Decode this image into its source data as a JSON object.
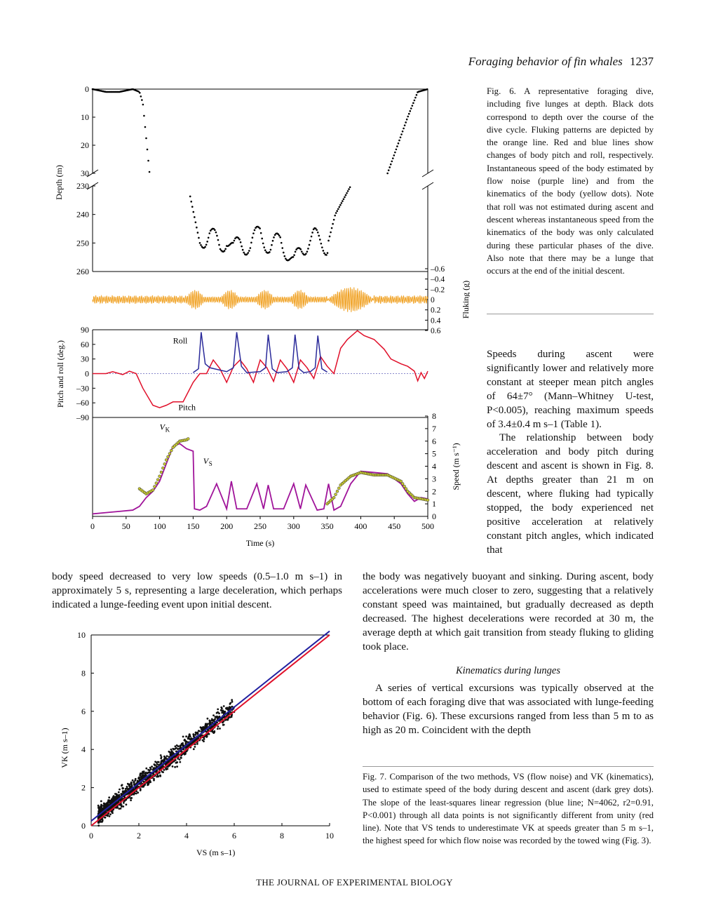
{
  "header": {
    "title": "Foraging behavior of fin whales",
    "page_number": "1237"
  },
  "fig6": {
    "caption": "Fig. 6. A representative foraging dive, including five lunges at depth. Black dots correspond to depth over the course of the dive cycle. Fluking patterns are depicted by the orange line. Red and blue lines show changes of body pitch and roll, respectively. Instantaneous speed of the body estimated by flow noise (purple line) and from the kinematics of the body (yellow dots). Note that roll was not estimated during ascent and descent whereas instantaneous speed from the kinematics of the body was only calculated during these particular phases of the dive. Also note that there may be a lunge that occurs at the end of the initial descent.",
    "depth_axis_label": "Depth (m)",
    "depth_ticks_top": [
      "0",
      "10",
      "20",
      "30"
    ],
    "depth_ticks_bottom": [
      "230",
      "240",
      "250",
      "260"
    ],
    "fluking_axis_label": "Fluking (g)",
    "fluking_ticks": [
      "–0.6",
      "–0.4",
      "–0.2",
      "0",
      "0.2",
      "0.4",
      "0.6"
    ],
    "pitch_axis_label": "Pitch and roll (deg.)",
    "pitch_ticks": [
      "90",
      "60",
      "30",
      "0",
      "–30",
      "–60",
      "–90"
    ],
    "roll_label": "Roll",
    "pitch_label": "Pitch",
    "speed_axis_label": "Speed (m s⁻¹)",
    "speed_ticks": [
      "8",
      "7",
      "6",
      "5",
      "4",
      "3",
      "2",
      "1",
      "0"
    ],
    "vk_label": "V",
    "vk_sub": "K",
    "vs_label": "V",
    "vs_sub": "S",
    "time_ticks": [
      "0",
      "50",
      "100",
      "150",
      "200",
      "250",
      "300",
      "350",
      "400",
      "450",
      "500"
    ],
    "time_axis_label": "Time (s)",
    "colors": {
      "depth": "#000000",
      "fluking": "#f0a020",
      "pitch": "#e0102a",
      "roll": "#2a2a9a",
      "vs": "#a0149a",
      "vk": "#c8c832"
    }
  },
  "fig7": {
    "caption": "Fig. 7. Comparison of the two methods, VS (flow noise) and VK (kinematics), used to estimate speed of the body during descent and ascent (dark grey dots). The slope of the least-squares linear regression (blue line; N=4062, r2=0.91, P<0.001) through all data points is not significantly different from unity (red line). Note that VS tends to underestimate VK at speeds greater than 5 m s–1, the highest speed for which flow noise was recorded by the towed wing (Fig. 3).",
    "x_ticks": [
      "0",
      "2",
      "4",
      "6",
      "8",
      "10"
    ],
    "y_ticks": [
      "0",
      "2",
      "4",
      "6",
      "8",
      "10"
    ],
    "x_axis_label": "VS (m s–1)",
    "y_axis_label": "VK (m s–1)",
    "colors": {
      "regression": "#2020a0",
      "unity": "#e0102a",
      "points": "#111111"
    }
  },
  "chart_data": [
    {
      "type": "line",
      "title": "",
      "xlabel": "Time (s)",
      "ylabel": "Depth (m)",
      "xlim": [
        0,
        500
      ],
      "ylim_broken": [
        [
          0,
          30
        ],
        [
          230,
          260
        ]
      ],
      "series": [
        {
          "name": "",
          "x": [
            0,
            20,
            40,
            60,
            70,
            75,
            85,
            145,
            160,
            175,
            190,
            200,
            210,
            220,
            235,
            250,
            265,
            280,
            300,
            310,
            330,
            350,
            362,
            385,
            440,
            455,
            470,
            485,
            500
          ],
          "y": [
            0,
            1,
            1,
            0,
            1,
            5,
            30,
            233,
            250,
            246,
            252,
            248,
            253,
            249,
            252,
            245,
            253,
            248,
            258,
            252,
            248,
            251,
            240,
            230,
            30,
            20,
            10,
            1,
            0
          ]
        }
      ]
    },
    {
      "type": "line",
      "title": "",
      "xlabel": "Time (s)",
      "ylabel": "Pitch and roll (deg.)",
      "xlim": [
        0,
        500
      ],
      "ylim": [
        -90,
        90
      ],
      "series": [
        {
          "name": "Roll",
          "x": [
            150,
            158,
            162,
            168,
            175,
            200,
            210,
            215,
            222,
            230,
            250,
            258,
            262,
            268,
            275,
            290,
            298,
            302,
            308,
            315,
            325,
            332,
            336,
            342,
            350
          ],
          "y": [
            2,
            10,
            85,
            20,
            12,
            4,
            12,
            85,
            15,
            2,
            4,
            12,
            80,
            10,
            2,
            4,
            12,
            80,
            10,
            2,
            4,
            12,
            78,
            10,
            3
          ]
        },
        {
          "name": "Pitch",
          "x": [
            0,
            20,
            30,
            45,
            55,
            65,
            75,
            90,
            100,
            110,
            120,
            135,
            150,
            160,
            170,
            180,
            190,
            200,
            210,
            220,
            230,
            240,
            250,
            260,
            270,
            280,
            290,
            300,
            310,
            320,
            330,
            340,
            350,
            360,
            370,
            380,
            395,
            405,
            420,
            435,
            445,
            460,
            470,
            480,
            485,
            490,
            495,
            500
          ],
          "y": [
            0,
            0,
            4,
            -2,
            5,
            0,
            -30,
            -65,
            -70,
            -65,
            -58,
            -58,
            -18,
            0,
            0,
            28,
            10,
            -18,
            14,
            28,
            10,
            -18,
            28,
            12,
            -16,
            28,
            10,
            -18,
            28,
            12,
            -10,
            35,
            15,
            0,
            52,
            70,
            88,
            78,
            70,
            50,
            30,
            20,
            15,
            5,
            -15,
            2,
            -10,
            5
          ]
        }
      ]
    },
    {
      "type": "line",
      "title": "",
      "xlabel": "Time (s)",
      "ylabel": "Speed (m s⁻¹)",
      "xlim": [
        0,
        500
      ],
      "ylim": [
        0,
        8
      ],
      "series": [
        {
          "name": "VS",
          "x": [
            0,
            20,
            40,
            60,
            70,
            80,
            90,
            100,
            110,
            120,
            130,
            140,
            150,
            152,
            160,
            170,
            185,
            200,
            207,
            215,
            230,
            245,
            255,
            262,
            270,
            285,
            300,
            310,
            318,
            335,
            345,
            352,
            360,
            370,
            385,
            400,
            420,
            440,
            460,
            470,
            480,
            490,
            500
          ],
          "y": [
            0.2,
            0.3,
            0.4,
            0.5,
            0.8,
            1.5,
            2.0,
            2.8,
            4.2,
            5.6,
            5.8,
            5.4,
            5.2,
            0.6,
            0.5,
            0.8,
            2.6,
            0.6,
            2.8,
            0.6,
            0.6,
            2.6,
            0.6,
            2.5,
            0.6,
            0.6,
            2.6,
            0.6,
            2.5,
            0.5,
            0.6,
            2.6,
            0.5,
            0.8,
            2.6,
            3.6,
            3.5,
            3.4,
            2.6,
            1.8,
            1.2,
            1.5,
            1.4
          ]
        },
        {
          "name": "VK",
          "x": [
            70,
            80,
            90,
            100,
            110,
            120,
            130,
            140,
            143,
            350,
            360,
            370,
            385,
            400,
            420,
            440,
            460,
            470,
            480,
            490,
            500
          ],
          "y": [
            2.2,
            1.8,
            2.1,
            3.2,
            4.5,
            5.5,
            6.0,
            6.1,
            6.2,
            1.0,
            1.5,
            2.5,
            3.2,
            3.5,
            3.3,
            3.3,
            2.8,
            2.0,
            1.5,
            1.4,
            1.3
          ]
        }
      ]
    },
    {
      "type": "scatter",
      "title": "",
      "xlabel": "VS (m s–1)",
      "ylabel": "VK (m s–1)",
      "xlim": [
        0,
        10
      ],
      "ylim": [
        0,
        10
      ],
      "series": [
        {
          "name": "regression",
          "x": [
            0,
            10
          ],
          "y": [
            0.25,
            10.2
          ]
        },
        {
          "name": "unity",
          "x": [
            0,
            10
          ],
          "y": [
            0,
            10
          ]
        }
      ]
    }
  ],
  "text": {
    "col2_para1": "Speeds during ascent were significantly lower and relatively more constant at steeper mean pitch angles of 64±7° (Mann–Whitney U-test, P<0.005), reaching maximum speeds of 3.4±0.4 m s–1 (Table 1).",
    "col2_para2": "The relationship between body acceleration and body pitch during descent and ascent is shown in Fig. 8. At depths greater than 21 m on descent, where fluking had typically stopped, the body experienced net positive acceleration at relatively constant pitch angles, which indicated that",
    "left_para": "body speed decreased to very low speeds (0.5–1.0 m s–1) in approximately 5 s, representing a large deceleration, which perhaps indicated a lunge-feeding event upon initial descent.",
    "right_para": "the body was negatively buoyant and sinking. During ascent, body accelerations were much closer to zero, suggesting that a relatively constant speed was maintained, but gradually decreased as depth decreased. The highest decelerations were recorded at 30 m, the average depth at which gait transition from steady fluking to gliding took place.",
    "subhead": "Kinematics during lunges",
    "lunge_para": "A series of vertical excursions was typically observed at the bottom of each foraging dive that was associated with lunge-feeding behavior (Fig. 6). These excursions ranged from less than 5 m to as high as 20 m. Coincident with the depth"
  },
  "footer": "THE JOURNAL OF EXPERIMENTAL BIOLOGY"
}
